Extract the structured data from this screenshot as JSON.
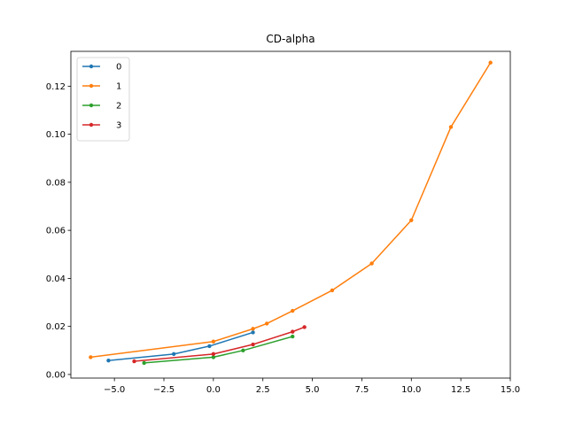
{
  "chart_data": {
    "type": "line",
    "title": "CD-alpha",
    "xlabel": "",
    "ylabel": "",
    "xlim": [
      -7.2,
      15.0
    ],
    "ylim": [
      -0.0015,
      0.1345
    ],
    "xticks": [
      -5.0,
      -2.5,
      0.0,
      2.5,
      5.0,
      7.5,
      10.0,
      12.5,
      15.0
    ],
    "xtick_labels": [
      "−5.0",
      "−2.5",
      "0.0",
      "2.5",
      "5.0",
      "7.5",
      "10.0",
      "12.5",
      "15.0"
    ],
    "yticks": [
      0.0,
      0.02,
      0.04,
      0.06,
      0.08,
      0.1,
      0.12
    ],
    "ytick_labels": [
      "0.00",
      "0.02",
      "0.04",
      "0.06",
      "0.08",
      "0.10",
      "0.12"
    ],
    "grid": false,
    "legend_position": "top-left",
    "series": [
      {
        "name": "0",
        "color": "#1f77b4",
        "x": [
          -5.3,
          -2.0,
          -0.2,
          2.0
        ],
        "y": [
          0.0058,
          0.0085,
          0.0118,
          0.0175
        ]
      },
      {
        "name": "1",
        "color": "#ff7f0e",
        "x": [
          -6.2,
          0.0,
          2.0,
          2.7,
          4.0,
          6.0,
          8.0,
          10.0,
          12.0,
          14.0
        ],
        "y": [
          0.0072,
          0.0137,
          0.019,
          0.0212,
          0.0265,
          0.035,
          0.0462,
          0.0642,
          0.103,
          0.1298
        ]
      },
      {
        "name": "2",
        "color": "#2ca02c",
        "x": [
          -3.5,
          0.0,
          1.5,
          4.0
        ],
        "y": [
          0.0048,
          0.0072,
          0.01,
          0.0158
        ]
      },
      {
        "name": "3",
        "color": "#d62728",
        "x": [
          -4.0,
          0.0,
          2.0,
          4.0,
          4.6
        ],
        "y": [
          0.0055,
          0.0085,
          0.0125,
          0.0178,
          0.0197
        ]
      }
    ]
  }
}
